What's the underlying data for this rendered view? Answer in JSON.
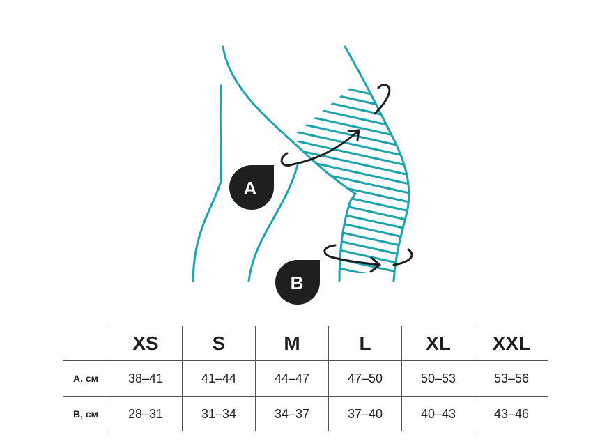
{
  "colors": {
    "accent": "#1ba4ad",
    "ink": "#1f1f1f"
  },
  "diagram": {
    "badges": [
      {
        "label": "A",
        "icon": "teardrop-badge"
      },
      {
        "label": "B",
        "icon": "teardrop-badge"
      }
    ],
    "arrows": [
      "rotation-arrow-a",
      "rotation-arrow-b"
    ]
  },
  "table": {
    "headers": [
      "",
      "XS",
      "S",
      "M",
      "L",
      "XL",
      "XXL"
    ],
    "rows": [
      {
        "label": "A, см",
        "values": [
          "38–41",
          "41–44",
          "44–47",
          "47–50",
          "50–53",
          "53–56"
        ]
      },
      {
        "label": "B, см",
        "values": [
          "28–31",
          "31–34",
          "34–37",
          "37–40",
          "40–43",
          "43–46"
        ]
      }
    ]
  }
}
